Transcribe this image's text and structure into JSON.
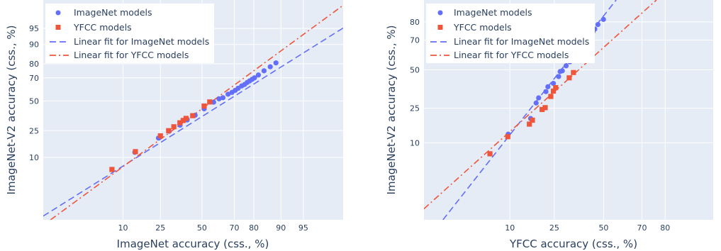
{
  "chart_data": [
    {
      "type": "scatter",
      "xlabel": "ImageNet accuracy (css., %)",
      "ylabel": "ImageNet-V2 accuracy (css., %)",
      "xticks": [
        "10",
        "25",
        "50",
        "70",
        "80",
        "90",
        "95"
      ],
      "yticks": [
        "10",
        "25",
        "50",
        "70",
        "80",
        "90",
        "95"
      ],
      "xlim": [
        0.5,
        98.9
      ],
      "ylim": [
        0.35,
        98.9
      ],
      "grid": true,
      "legend_position": "top-left",
      "legend": [
        "ImageNet models",
        "YFCC models",
        "Linear fit for ImageNet models",
        "Linear fit for YFCC models"
      ],
      "colors": {
        "imagenet": "#636efa",
        "yfcc": "#ef553b",
        "plot_bg": "#e5ecf6"
      },
      "series": [
        {
          "name": "ImageNet models",
          "marker": "circle",
          "points": [
            [
              7.2,
              6.0
            ],
            [
              13.8,
              12.2
            ],
            [
              24.0,
              20.0
            ],
            [
              29.7,
              24.6
            ],
            [
              36.1,
              29.1
            ],
            [
              40.5,
              33.3
            ],
            [
              45.6,
              37.3
            ],
            [
              51.4,
              42.9
            ],
            [
              57.5,
              48.9
            ],
            [
              60.9,
              51.9
            ],
            [
              63.3,
              52.9
            ],
            [
              66.4,
              56.1
            ],
            [
              68.7,
              57.7
            ],
            [
              70.5,
              59.5
            ],
            [
              72.1,
              61.3
            ],
            [
              74.0,
              63.3
            ],
            [
              75.5,
              64.5
            ],
            [
              76.8,
              66.2
            ],
            [
              78.0,
              67.5
            ],
            [
              79.2,
              68.8
            ],
            [
              80.3,
              70.0
            ],
            [
              82.0,
              72.2
            ],
            [
              84.3,
              75.3
            ],
            [
              86.6,
              78.1
            ],
            [
              88.5,
              80.6
            ]
          ]
        },
        {
          "name": "YFCC models",
          "marker": "square",
          "points": [
            [
              7.2,
              6.0
            ],
            [
              14.0,
              12.5
            ],
            [
              25.0,
              21.4
            ],
            [
              29.4,
              25.0
            ],
            [
              32.4,
              27.9
            ],
            [
              36.0,
              31.0
            ],
            [
              38.0,
              32.9
            ],
            [
              39.8,
              34.6
            ],
            [
              44.0,
              36.9
            ],
            [
              51.4,
              45.4
            ],
            [
              55.0,
              49.1
            ]
          ]
        },
        {
          "name": "Linear fit for ImageNet models",
          "line": "dash",
          "points": [
            [
              0.5,
              0.45
            ],
            [
              98.9,
              95.1
            ]
          ]
        },
        {
          "name": "Linear fit for YFCC models",
          "line": "dashdot",
          "points": [
            [
              0.7,
              0.35
            ],
            [
              98.9,
              98.5
            ]
          ]
        }
      ]
    },
    {
      "type": "scatter",
      "xlabel": "YFCC accuracy (css., %)",
      "ylabel": "ImageNet-V2 accuracy (css., %)",
      "xticks": [
        "10",
        "25",
        "50",
        "70",
        "80"
      ],
      "yticks": [
        "10",
        "25",
        "50",
        "70",
        "80"
      ],
      "xlim": [
        0.7,
        93.3
      ],
      "ylim": [
        0.42,
        89.0
      ],
      "grid": true,
      "legend_position": "top-left",
      "legend": [
        "ImageNet models",
        "YFCC models",
        "Linear fit for ImageNet models",
        "Linear fit for YFCC models"
      ],
      "colors": {
        "imagenet": "#636efa",
        "yfcc": "#ef553b",
        "plot_bg": "#e5ecf6"
      },
      "series": [
        {
          "name": "ImageNet models",
          "marker": "circle",
          "points": [
            [
              9.6,
              12.9
            ],
            [
              15.9,
              19.6
            ],
            [
              17.8,
              28.0
            ],
            [
              18.7,
              31.1
            ],
            [
              21.5,
              35.1
            ],
            [
              22.3,
              38.3
            ],
            [
              24.6,
              40.6
            ],
            [
              26.9,
              45.3
            ],
            [
              27.6,
              48.8
            ],
            [
              28.6,
              49.3
            ],
            [
              30.4,
              52.8
            ],
            [
              32.2,
              55.6
            ],
            [
              33.0,
              57.3
            ],
            [
              34.2,
              59.2
            ],
            [
              35.5,
              61.0
            ],
            [
              36.3,
              62.5
            ],
            [
              37.2,
              64.3
            ],
            [
              38.1,
              65.9
            ],
            [
              38.9,
              67.1
            ],
            [
              39.8,
              68.3
            ],
            [
              40.8,
              70.0
            ],
            [
              41.9,
              71.6
            ],
            [
              43.2,
              73.6
            ],
            [
              44.3,
              75.1
            ],
            [
              45.2,
              76.3
            ],
            [
              46.9,
              78.7
            ],
            [
              49.9,
              81.2
            ]
          ]
        },
        {
          "name": "YFCC models",
          "marker": "square",
          "points": [
            [
              6.0,
              7.0
            ],
            [
              9.5,
              12.0
            ],
            [
              15.5,
              17.0
            ],
            [
              16.5,
              18.8
            ],
            [
              20.0,
              24.3
            ],
            [
              21.2,
              25.3
            ],
            [
              23.5,
              32.0
            ],
            [
              24.6,
              35.4
            ],
            [
              25.6,
              37.7
            ],
            [
              31.9,
              44.4
            ],
            [
              34.0,
              48.1
            ]
          ]
        },
        {
          "name": "Linear fit for ImageNet models",
          "line": "dash",
          "points": [
            [
              1.4,
              0.42
            ],
            [
              56.8,
              89.0
            ]
          ]
        },
        {
          "name": "Linear fit for YFCC models",
          "line": "dashdot",
          "points": [
            [
              0.7,
              0.73
            ],
            [
              76.5,
              89.0
            ]
          ]
        }
      ]
    }
  ]
}
